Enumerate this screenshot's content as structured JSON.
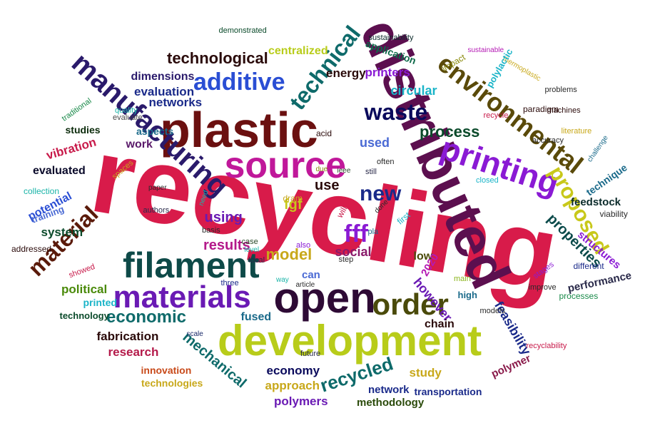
{
  "words": [
    {
      "text": "recycling",
      "color": "#d81b4a"
    },
    {
      "text": "distributed",
      "color": "#5c0f4f"
    },
    {
      "text": "plastic",
      "color": "#6b1010"
    },
    {
      "text": "source",
      "color": "#c0189a"
    },
    {
      "text": "development",
      "color": "#b8cc1a"
    },
    {
      "text": "open",
      "color": "#2e0a35"
    },
    {
      "text": "filament",
      "color": "#0e4a48"
    },
    {
      "text": "materials",
      "color": "#6a1ab4"
    },
    {
      "text": "printing",
      "color": "#8a1ad4"
    },
    {
      "text": "manufacturing",
      "color": "#2a1a6b"
    },
    {
      "text": "environmental",
      "color": "#5a4a0a"
    },
    {
      "text": "additive",
      "color": "#2a4ed4"
    },
    {
      "text": "technical",
      "color": "#0e6a6a"
    },
    {
      "text": "waste",
      "color": "#0a0a5c"
    },
    {
      "text": "order",
      "color": "#4a4a0a"
    },
    {
      "text": "new",
      "color": "#1a2a8a"
    },
    {
      "text": "proposed",
      "color": "#c8c81a"
    },
    {
      "text": "material",
      "color": "#5a1a0a"
    },
    {
      "text": "economic",
      "color": "#0e6a6a"
    },
    {
      "text": "technological",
      "color": "#2a0a0a"
    },
    {
      "text": "process",
      "color": "#0a4a2a"
    },
    {
      "text": "properties",
      "color": "#0a4a4a"
    },
    {
      "text": "however",
      "color": "#6a1ab4"
    },
    {
      "text": "results",
      "color": "#b41a8a"
    },
    {
      "text": "fff",
      "color": "#8a1ad4"
    },
    {
      "text": "recycled",
      "color": "#0e6a6a"
    },
    {
      "text": "mechanical",
      "color": "#0e6a6a"
    },
    {
      "text": "feasibility",
      "color": "#1a2a8a"
    },
    {
      "text": "using",
      "color": "#6a1ab4"
    },
    {
      "text": "circular",
      "color": "#1ab4c8"
    },
    {
      "text": "printers",
      "color": "#8a1ad4"
    },
    {
      "text": "social",
      "color": "#8a1a6a"
    },
    {
      "text": "networks",
      "color": "#1a2a8a"
    },
    {
      "text": "evaluation",
      "color": "#1a2a8a"
    },
    {
      "text": "model",
      "color": "#c8a81a"
    },
    {
      "text": "energy",
      "color": "#2a0a0a"
    },
    {
      "text": "dimensions",
      "color": "#2a1a6b"
    },
    {
      "text": "work",
      "color": "#5a1a6a"
    },
    {
      "text": "centralized",
      "color": "#b8cc1a"
    },
    {
      "text": "application",
      "color": "#0e6a4a"
    },
    {
      "text": "political",
      "color": "#4a8a0a"
    },
    {
      "text": "vibration",
      "color": "#c81a4a"
    },
    {
      "text": "system",
      "color": "#0a4a2a"
    },
    {
      "text": "fabrication",
      "color": "#2a0a0a"
    },
    {
      "text": "research",
      "color": "#b41a4a"
    },
    {
      "text": "economy",
      "color": "#0a0a5c"
    },
    {
      "text": "study",
      "color": "#c8a81a"
    },
    {
      "text": "approach",
      "color": "#c8a81a"
    },
    {
      "text": "network",
      "color": "#1a2a8a"
    },
    {
      "text": "polymers",
      "color": "#6a1ab4"
    },
    {
      "text": "methodology",
      "color": "#2a4a0a"
    },
    {
      "text": "polymer",
      "color": "#8a1a4a"
    },
    {
      "text": "structures",
      "color": "#8a1ad4"
    },
    {
      "text": "performance",
      "color": "#2a2a4a"
    },
    {
      "text": "use",
      "color": "#2a0a0a"
    },
    {
      "text": "used",
      "color": "#4a6ad4"
    },
    {
      "text": "fused",
      "color": "#1a6a8a"
    },
    {
      "text": "chain",
      "color": "#2a0a0a"
    },
    {
      "text": "low",
      "color": "#4a4a0a"
    },
    {
      "text": "fgf",
      "color": "#c8c81a"
    },
    {
      "text": "can",
      "color": "#4a6ad4"
    },
    {
      "text": "dram",
      "color": "#c8a81a"
    },
    {
      "text": "potential",
      "color": "#2a4ed4"
    },
    {
      "text": "evaluated",
      "color": "#0a0a2a"
    },
    {
      "text": "studies",
      "color": "#0a2a0a"
    },
    {
      "text": "aspects",
      "color": "#1a6a8a"
    },
    {
      "text": "training",
      "color": "#4a6ad4"
    },
    {
      "text": "collection",
      "color": "#1ab4a8"
    },
    {
      "text": "addressed",
      "color": "#2a0a0a"
    },
    {
      "text": "technology",
      "color": "#0a4a2a"
    },
    {
      "text": "printed",
      "color": "#1ab4c8"
    },
    {
      "text": "innovation",
      "color": "#c84a1a"
    },
    {
      "text": "technologies",
      "color": "#c8a81a"
    },
    {
      "text": "transportation",
      "color": "#1a2a8a"
    },
    {
      "text": "feedstock",
      "color": "#0a2a2a"
    },
    {
      "text": "technique",
      "color": "#1a6a8a"
    },
    {
      "text": "viability",
      "color": "#2a2a2a"
    },
    {
      "text": "high",
      "color": "#1a6a8a"
    },
    {
      "text": "2020",
      "color": "#b41ab4"
    },
    {
      "text": "demonstrated",
      "color": "#0a4a2a"
    },
    {
      "text": "sustainability",
      "color": "#0a2a2a"
    },
    {
      "text": "sustainable",
      "color": "#b41ab4"
    },
    {
      "text": "thermoplastic",
      "color": "#c8a81a"
    },
    {
      "text": "polylactic",
      "color": "#1ab4c8"
    },
    {
      "text": "problems",
      "color": "#2a2a2a"
    },
    {
      "text": "machines",
      "color": "#2a0a0a"
    },
    {
      "text": "paradigm",
      "color": "#2a0a0a"
    },
    {
      "text": "impact",
      "color": "#8a8a0a"
    },
    {
      "text": "recycle",
      "color": "#c81a4a"
    },
    {
      "text": "literature",
      "color": "#c8a81a"
    },
    {
      "text": "challenge",
      "color": "#1a6a8a"
    },
    {
      "text": "accuracy",
      "color": "#2a2a2a"
    },
    {
      "text": "quality",
      "color": "#1ab4a8"
    },
    {
      "text": "traditional",
      "color": "#1a8a4a"
    },
    {
      "text": "evaluate",
      "color": "#4a4a4a"
    },
    {
      "text": "acid",
      "color": "#2a0a0a"
    },
    {
      "text": "often",
      "color": "#2a2a2a"
    },
    {
      "text": "still",
      "color": "#2a2a4a"
    },
    {
      "text": "ieee",
      "color": "#2a4a2a"
    },
    {
      "text": "due",
      "color": "#8a8a0a"
    },
    {
      "text": "closed",
      "color": "#1ab4c8"
    },
    {
      "text": "spaces",
      "color": "#c8a81a"
    },
    {
      "text": "paper",
      "color": "#2a2a2a"
    },
    {
      "text": "need",
      "color": "#1ab4a8"
    },
    {
      "text": "authors",
      "color": "#2a2a4a"
    },
    {
      "text": "will",
      "color": "#c81a4a"
    },
    {
      "text": "first",
      "color": "#1ab4c8"
    },
    {
      "text": "done",
      "color": "#2a2a2a"
    },
    {
      "text": "basis",
      "color": "#2a2a2a"
    },
    {
      "text": "pla",
      "color": "#1a6a8a"
    },
    {
      "text": "case",
      "color": "#2a4a2a"
    },
    {
      "text": "also",
      "color": "#8a1ad4"
    },
    {
      "text": "level",
      "color": "#1ab4a8"
    },
    {
      "text": "local",
      "color": "#2a2a4a"
    },
    {
      "text": "step",
      "color": "#2a2a2a"
    },
    {
      "text": "showed",
      "color": "#c81a4a"
    },
    {
      "text": "three",
      "color": "#1a2a8a"
    },
    {
      "text": "way",
      "color": "#1ab4a8"
    },
    {
      "text": "article",
      "color": "#2a2a2a"
    },
    {
      "text": "main",
      "color": "#8ab41a"
    },
    {
      "text": "stages",
      "color": "#8a1ad4"
    },
    {
      "text": "improve",
      "color": "#2a2a2a"
    },
    {
      "text": "different",
      "color": "#1a2a8a"
    },
    {
      "text": "processes",
      "color": "#1a8a4a"
    },
    {
      "text": "models",
      "color": "#2a2a2a"
    },
    {
      "text": "future",
      "color": "#2a2a4a"
    },
    {
      "text": "scale",
      "color": "#1a2a6a"
    },
    {
      "text": "recyclability",
      "color": "#c81a4a"
    }
  ]
}
